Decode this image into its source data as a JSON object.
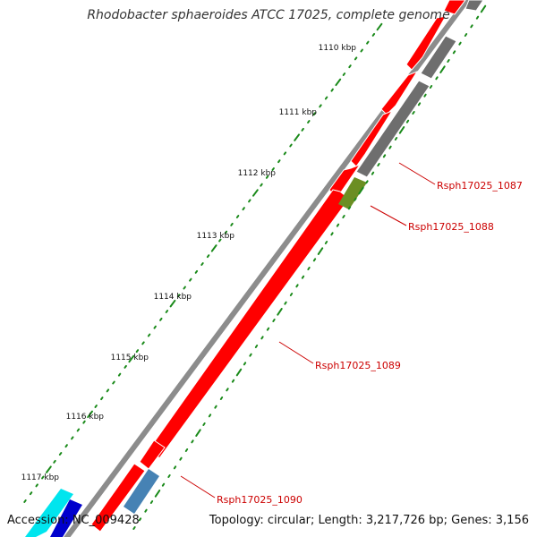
{
  "title": "Rhodobacter sphaeroides ATCC 17025, complete genome",
  "footer": {
    "accession": "Accession: NC_009428",
    "topology": "Topology: circular; Length: 3,217,726 bp; Genes: 3,156"
  },
  "colors": {
    "backbone": "#8c8c8c",
    "gene_forward": "#ff0000",
    "gene_reverse": "#6e6e6e",
    "gene_1088": "#6b8e23",
    "gene_1090": "#4682b4",
    "gene_cyan": "#00e5ee",
    "gene_blue": "#0000cd",
    "tick": "#1a8a1a",
    "gene_label": "#cc0000"
  },
  "ruler": {
    "labels": [
      "1110 kbp",
      "1111 kbp",
      "1112 kbp",
      "1113 kbp",
      "1114 kbp",
      "1115 kbp",
      "1116 kbp",
      "1117 kbp"
    ]
  },
  "genes": [
    {
      "name": "Rsph17025_1087",
      "label": "Rsph17025_1087"
    },
    {
      "name": "Rsph17025_1088",
      "label": "Rsph17025_1088"
    },
    {
      "name": "Rsph17025_1089",
      "label": "Rsph17025_1089"
    },
    {
      "name": "Rsph17025_1090",
      "label": "Rsph17025_1090"
    }
  ]
}
